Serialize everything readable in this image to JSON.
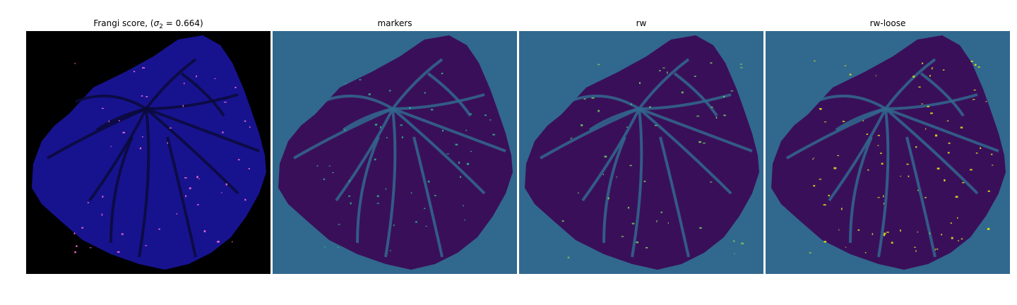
{
  "panels": [
    {
      "title_prefix": "Frangi score, (",
      "title_sigma": "σ",
      "title_sub": "2",
      "title_suffix": " = 0.664)",
      "bg": "#000000",
      "fill": "#17138f",
      "accent": "#ff6ad5"
    },
    {
      "title": "markers",
      "bg": "#31688e",
      "fill": "#3a0f5a",
      "accent": "#2ab58a"
    },
    {
      "title": "rw",
      "bg": "#31688e",
      "fill": "#3a0f5a",
      "accent": "#6ccd5a"
    },
    {
      "title": "rw-loose",
      "bg": "#31688e",
      "fill": "#3a0f5a",
      "accent": "#dde318"
    }
  ]
}
